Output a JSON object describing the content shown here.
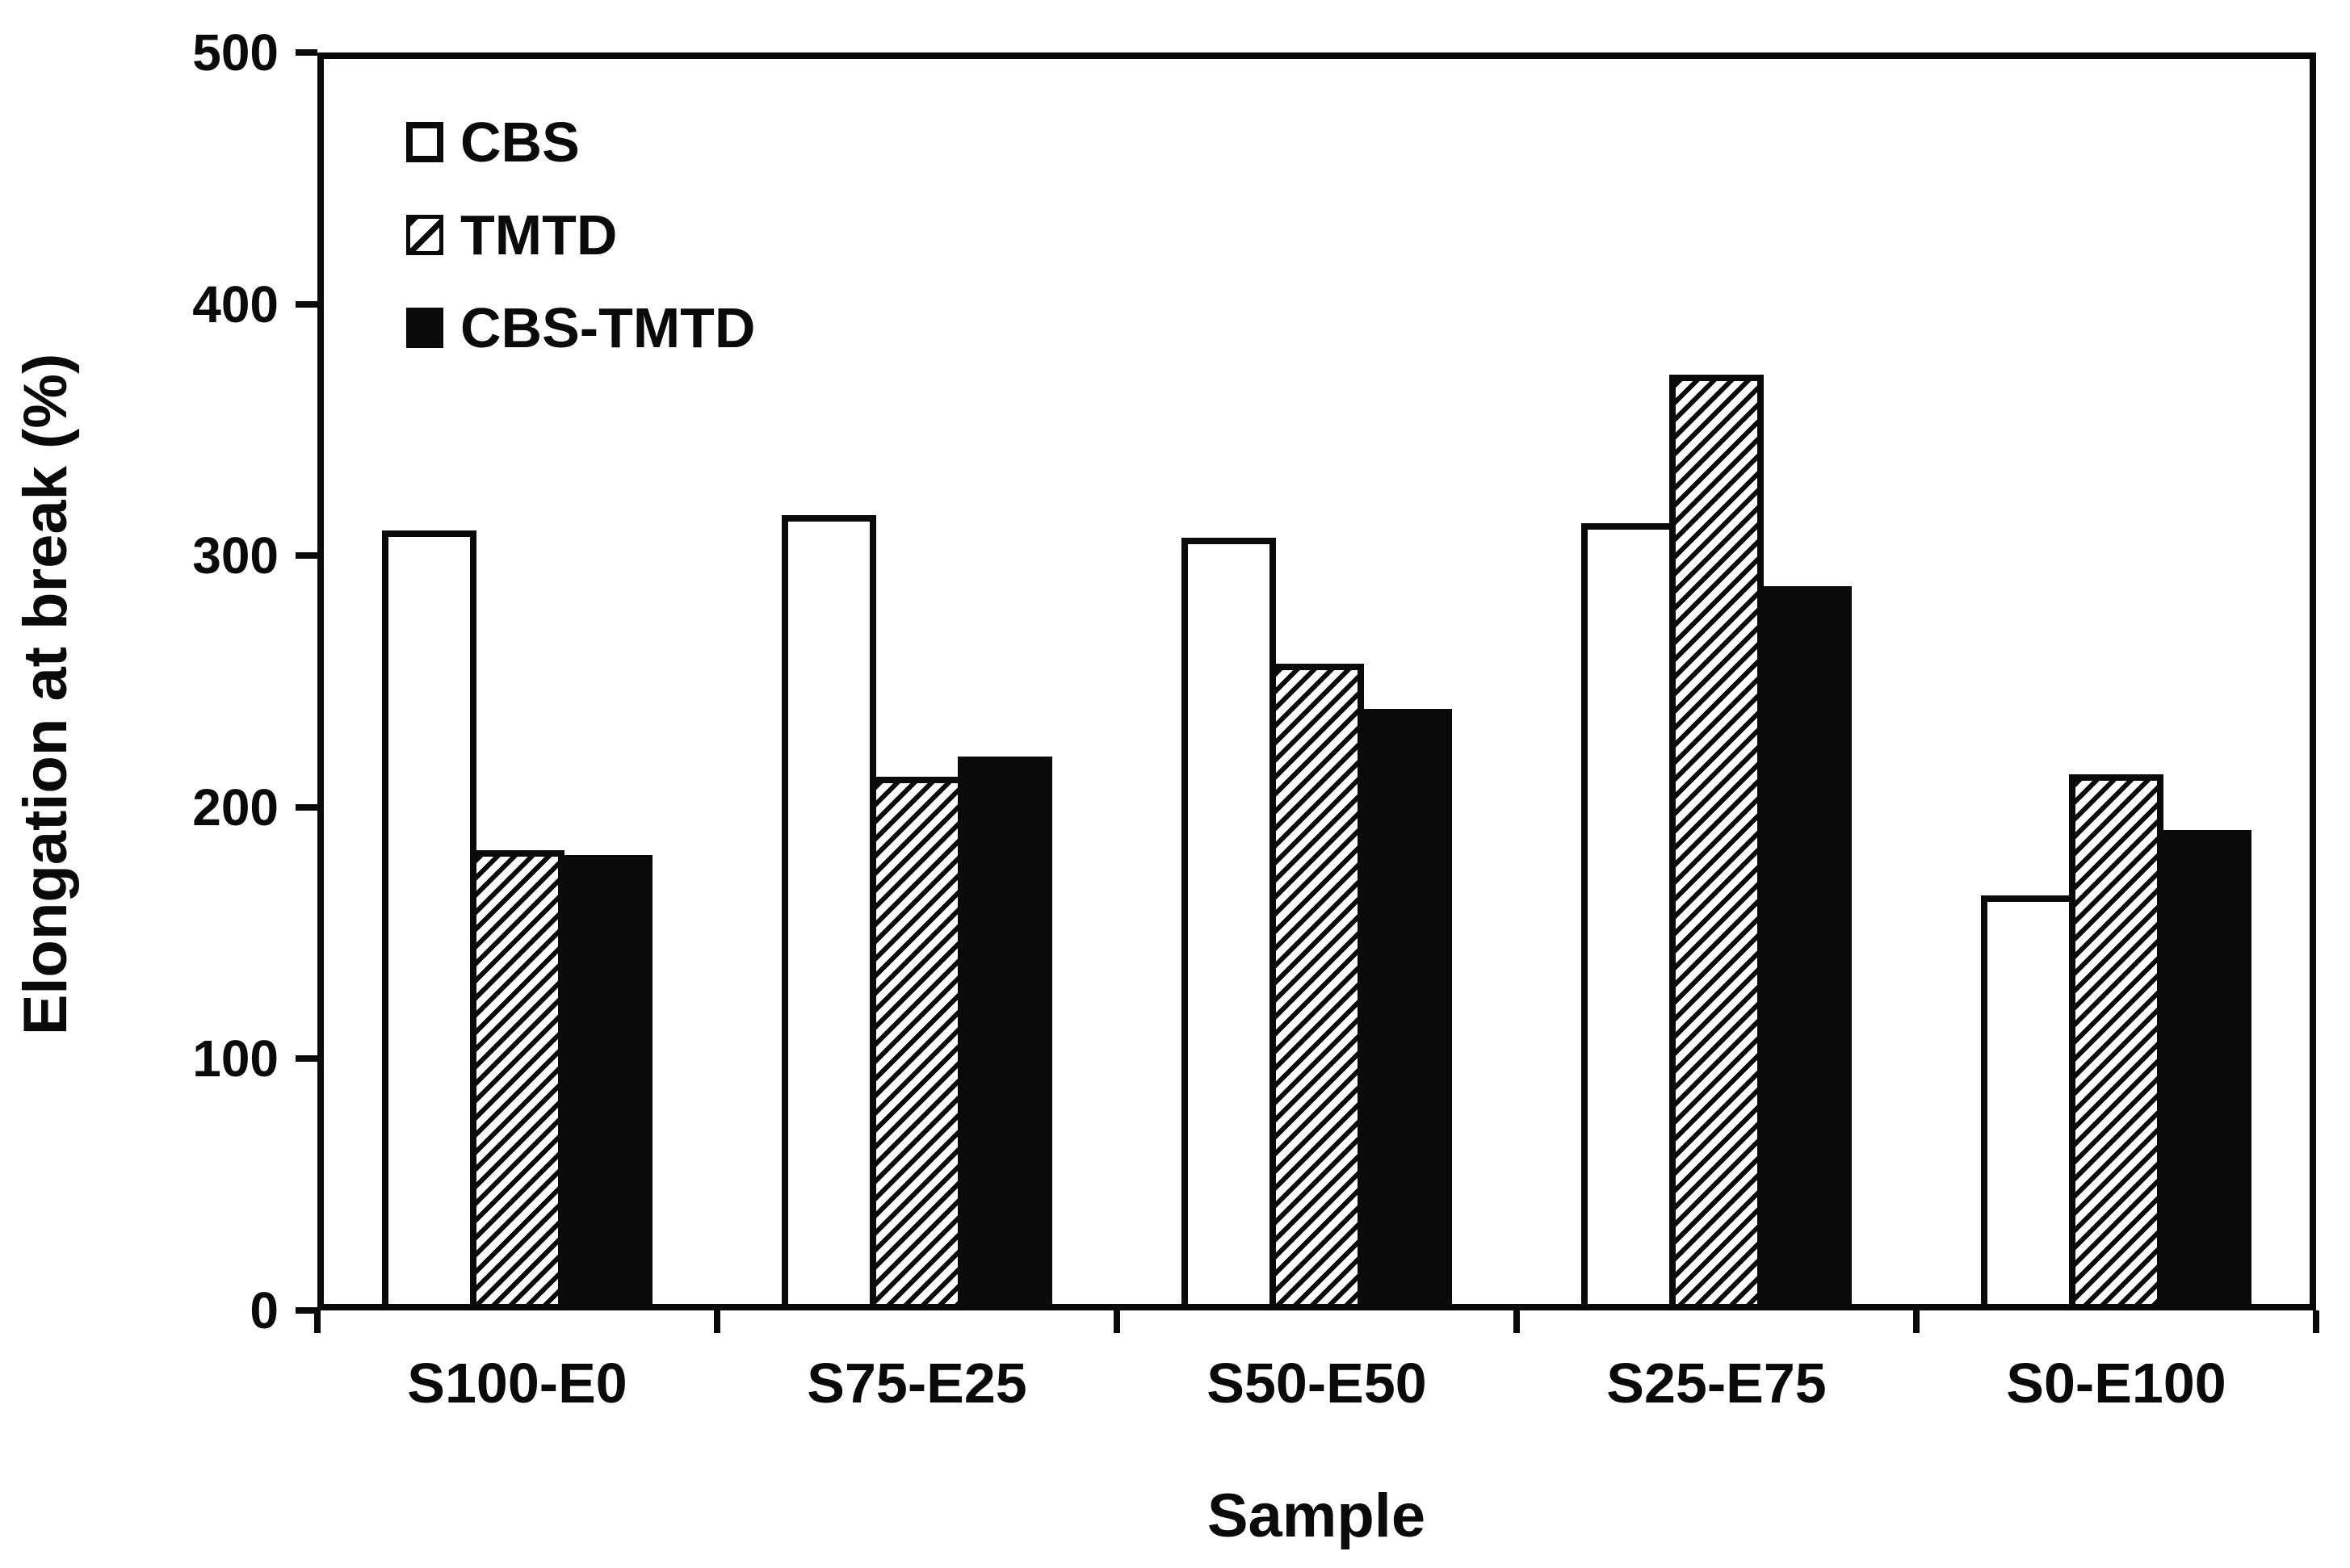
{
  "chart_data": {
    "type": "bar",
    "title": "",
    "xlabel": "Sample",
    "ylabel": "Elongation at break (%)",
    "categories": [
      "S100-E0",
      "S75-E25",
      "S50-E50",
      "S25-E75",
      "S0-E100"
    ],
    "series": [
      {
        "name": "CBS",
        "pattern": "open",
        "values": [
          310,
          316,
          307,
          313,
          165
        ]
      },
      {
        "name": "TMTD",
        "pattern": "hatched",
        "values": [
          183,
          212,
          257,
          372,
          213
        ]
      },
      {
        "name": "CBS-TMTD",
        "pattern": "solid",
        "values": [
          181,
          220,
          239,
          288,
          191
        ]
      }
    ],
    "ylim": [
      0,
      500
    ],
    "yticks": [
      0,
      100,
      200,
      300,
      400,
      500
    ],
    "grid": false,
    "legend_position": "top-left-inside"
  },
  "colors": {
    "ink": "#0a0a0a",
    "background": "#ffffff"
  }
}
